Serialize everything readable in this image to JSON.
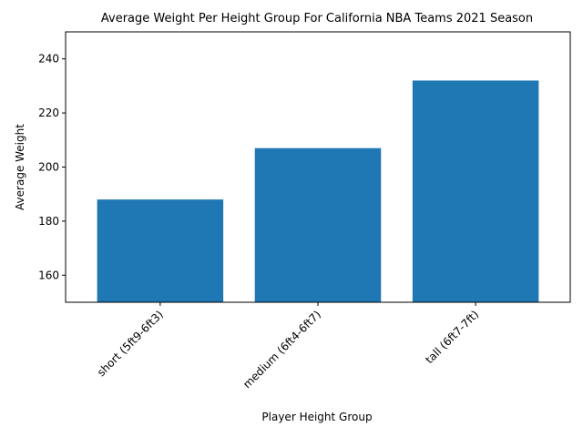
{
  "chart_data": {
    "type": "bar",
    "title": "Average Weight Per Height Group For California NBA Teams 2021 Season",
    "xlabel": "Player Height Group",
    "ylabel": "Average Weight",
    "categories": [
      "short (5ft9-6ft3)",
      "medium (6ft4-6ft7)",
      "tall (6ft7-7ft)"
    ],
    "values": [
      188,
      207,
      232
    ],
    "ylim": [
      150,
      250
    ],
    "yticks": [
      160,
      180,
      200,
      220,
      240
    ],
    "bar_color": "#1f77b4",
    "grid": false,
    "legend": "none"
  }
}
